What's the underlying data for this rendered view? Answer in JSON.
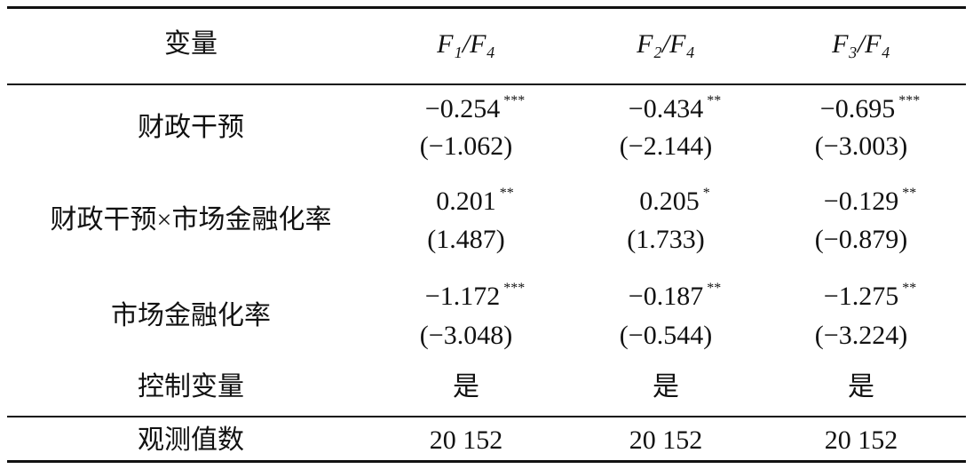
{
  "table": {
    "header": [
      "变量",
      "F₁/F₄",
      "F₂/F₄",
      "F₃/F₄"
    ],
    "rows": [
      {
        "label": "财政干预",
        "cells": [
          {
            "coef": "−0.254",
            "stars": "***",
            "t": "(−1.062)"
          },
          {
            "coef": "−0.434",
            "stars": "**",
            "t": "(−2.144)"
          },
          {
            "coef": "−0.695",
            "stars": "***",
            "t": "(−3.003)"
          }
        ]
      },
      {
        "label": "财政干预×市场金融化率",
        "cells": [
          {
            "coef": "0.201",
            "stars": "**",
            "t": "(1.487)"
          },
          {
            "coef": "0.205",
            "stars": "*",
            "t": "(1.733)"
          },
          {
            "coef": "−0.129",
            "stars": "**",
            "t": "(−0.879)"
          }
        ]
      },
      {
        "label": "市场金融化率",
        "cells": [
          {
            "coef": "−1.172",
            "stars": "***",
            "t": "(−3.048)"
          },
          {
            "coef": "−0.187",
            "stars": "**",
            "t": "(−0.544)"
          },
          {
            "coef": "−1.275",
            "stars": "**",
            "t": "(−3.224)"
          }
        ]
      },
      {
        "label": "控制变量",
        "cells": [
          "是",
          "是",
          "是"
        ]
      },
      {
        "label": "观测值数",
        "cells": [
          "20 152",
          "20 152",
          "20 152"
        ]
      }
    ]
  }
}
